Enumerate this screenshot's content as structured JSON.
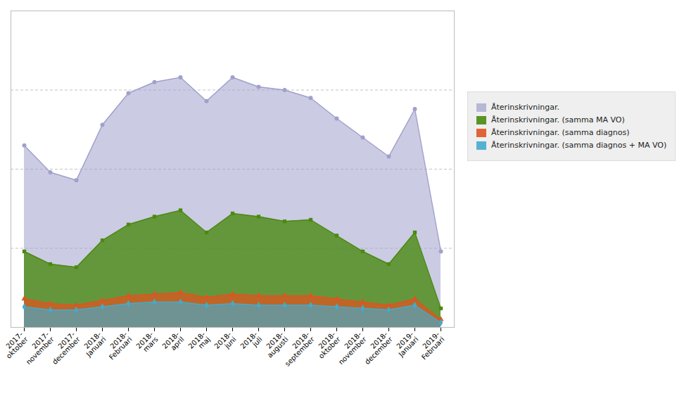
{
  "chart_data": {
    "type": "area",
    "categories": [
      "2017-\noktober",
      "2017-\nnovember",
      "2017-\ndecember",
      "2018-\nJanuari",
      "2018-\nFebruari",
      "2018-\nmars",
      "2018-\napril",
      "2018-\nmaj",
      "2018-\njuni",
      "2018-\njuli",
      "2018-\naugusti",
      "2018-\nseptember",
      "2018-\noktober",
      "2018-\nnovember",
      "2018-\ndecember",
      "2019-\nJanuari",
      "2019-\nFebruari"
    ],
    "series": [
      {
        "name": "Återinskrivningar.",
        "color": "#a0a0cc",
        "marker": "circle",
        "values": [
          115,
          98,
          93,
          128,
          148,
          155,
          158,
          143,
          158,
          152,
          150,
          145,
          132,
          120,
          108,
          138,
          48
        ]
      },
      {
        "name": "Återinskrivningar. (samma MA VO)",
        "color": "#4a8a10",
        "marker": "square",
        "values": [
          48,
          40,
          38,
          55,
          65,
          70,
          74,
          60,
          72,
          70,
          67,
          68,
          58,
          48,
          40,
          60,
          12
        ]
      },
      {
        "name": "Återinskrivningar. (samma diagnos)",
        "color": "#dd5522",
        "marker": "triangle",
        "values": [
          18,
          15,
          14,
          17,
          20,
          21,
          22,
          19,
          21,
          20,
          20,
          20,
          18,
          16,
          14,
          18,
          5
        ]
      },
      {
        "name": "Återinskrivningar. (samma diagnos + MA VO)",
        "color": "#44aacc",
        "marker": "diamond",
        "values": [
          13,
          11,
          11,
          13,
          15,
          16,
          16,
          14,
          15,
          14,
          14,
          14,
          13,
          12,
          11,
          14,
          3
        ]
      }
    ],
    "ylim": [
      0,
      200
    ],
    "yticks": [
      50,
      100,
      150,
      200
    ],
    "grid": true,
    "legend": "right",
    "tick_labels": "x"
  }
}
